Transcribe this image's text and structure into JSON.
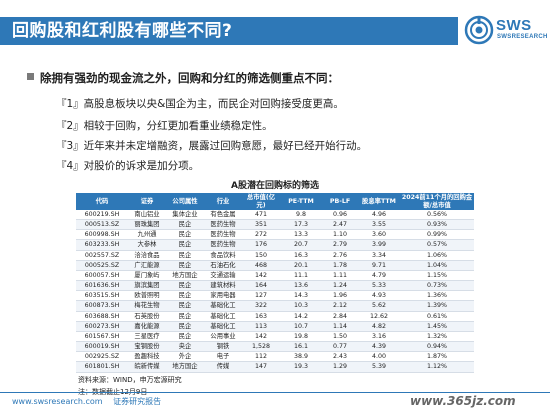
{
  "header": {
    "title": "回购股和红利股有哪些不同?",
    "logo_text": "SWS",
    "logo_sub": "SWSRESEARCH",
    "brand_color": "#2e78b7"
  },
  "body": {
    "lead": "除拥有强劲的现金流之外，回购和分红的筛选侧重点不同：",
    "points": [
      "『1』高股息板块以央&国企为主，而民企对回购接受度更高。",
      "『2』相较于回购，分红更加看重业绩稳定性。",
      "『3』近年来并未定增融资，展露过回购意愿，最好已经开始行动。",
      "『4』对股价的诉求是加分项。"
    ]
  },
  "table": {
    "title": "A股潜在回购标的筛选",
    "headers": [
      "代码",
      "证券",
      "公司属性",
      "行业",
      "总市值(亿元)",
      "PE-TTM",
      "PB-LF",
      "股息率TTM",
      "2024前11个月的回购金额/总市值"
    ],
    "rows": [
      [
        "600219.SH",
        "南山铝业",
        "集体企业",
        "有色金属",
        "471",
        "9.8",
        "0.96",
        "4.96",
        "0.56%"
      ],
      [
        "000513.SZ",
        "丽珠集团",
        "民企",
        "医药生物",
        "351",
        "17.3",
        "2.47",
        "3.55",
        "0.93%"
      ],
      [
        "600998.SH",
        "九州通",
        "民企",
        "医药生物",
        "272",
        "13.3",
        "1.10",
        "3.60",
        "0.99%"
      ],
      [
        "603233.SH",
        "大参林",
        "民企",
        "医药生物",
        "176",
        "20.7",
        "2.79",
        "3.99",
        "0.57%"
      ],
      [
        "002557.SZ",
        "洽洽食品",
        "民企",
        "食品饮料",
        "150",
        "16.3",
        "2.76",
        "3.34",
        "1.06%"
      ],
      [
        "000525.SZ",
        "广汇能源",
        "民企",
        "石油石化",
        "468",
        "20.1",
        "1.78",
        "9.71",
        "1.04%"
      ],
      [
        "600057.SH",
        "厦门象屿",
        "地方国企",
        "交通运输",
        "142",
        "11.1",
        "1.11",
        "4.79",
        "1.15%"
      ],
      [
        "601636.SH",
        "旗滨集团",
        "民企",
        "建筑材料",
        "164",
        "13.6",
        "1.24",
        "5.33",
        "0.73%"
      ],
      [
        "603515.SH",
        "欧普照明",
        "民企",
        "家用电器",
        "127",
        "14.3",
        "1.96",
        "4.93",
        "1.36%"
      ],
      [
        "600873.SH",
        "梅花生物",
        "民企",
        "基础化工",
        "322",
        "10.3",
        "2.12",
        "5.62",
        "1.39%"
      ],
      [
        "603688.SH",
        "石英股份",
        "民企",
        "基础化工",
        "163",
        "14.2",
        "2.84",
        "12.62",
        "0.61%"
      ],
      [
        "600273.SH",
        "嘉化能源",
        "民企",
        "基础化工",
        "113",
        "10.7",
        "1.14",
        "4.82",
        "1.45%"
      ],
      [
        "601567.SH",
        "三星医疗",
        "民企",
        "公用事业",
        "142",
        "19.8",
        "1.50",
        "3.16",
        "1.32%"
      ],
      [
        "600019.SH",
        "宝钢股份",
        "央企",
        "钢铁",
        "1,528",
        "16.1",
        "0.77",
        "4.39",
        "0.94%"
      ],
      [
        "002925.SZ",
        "盈趣科技",
        "外企",
        "电子",
        "112",
        "38.9",
        "2.43",
        "4.00",
        "1.87%"
      ],
      [
        "601801.SH",
        "皖新传媒",
        "地方国企",
        "传媒",
        "147",
        "19.3",
        "1.29",
        "5.39",
        "1.12%"
      ]
    ],
    "source": "资料来源：WIND，申万宏源研究",
    "note": "注：数据截止12月9日"
  },
  "footer": {
    "url": "www.swsresearch.com",
    "label": "证券研究报告",
    "watermark": "www.365jz.com"
  }
}
